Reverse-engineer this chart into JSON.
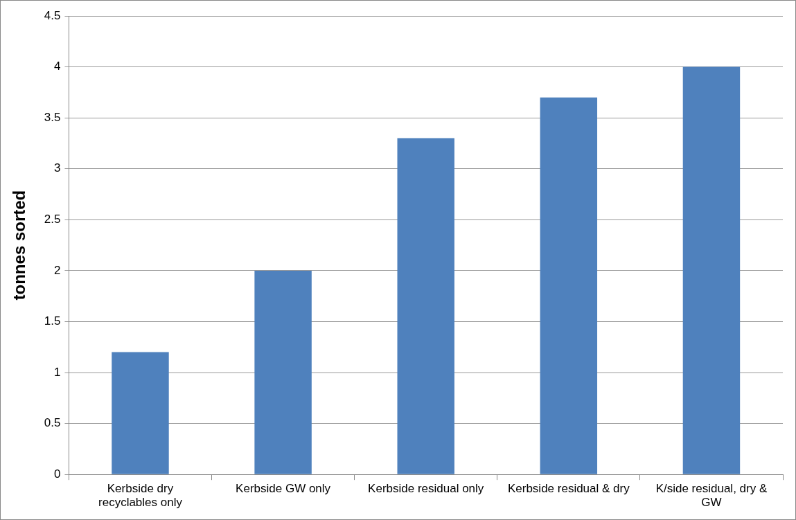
{
  "chart_data": {
    "type": "bar",
    "ylabel": "tonnes sorted",
    "categories": [
      "Kerbside dry recyclables only",
      "Kerbside GW only",
      "Kerbside residual only",
      "Kerbside residual & dry",
      "K/side residual, dry & GW"
    ],
    "values": [
      1.2,
      2.0,
      3.3,
      3.7,
      4.0
    ],
    "color": "#4f81bd",
    "ylim": [
      0,
      4.5
    ],
    "yticks": [
      0,
      0.5,
      1,
      1.5,
      2,
      2.5,
      3,
      3.5,
      4,
      4.5
    ],
    "grid": "y",
    "legend": false
  }
}
